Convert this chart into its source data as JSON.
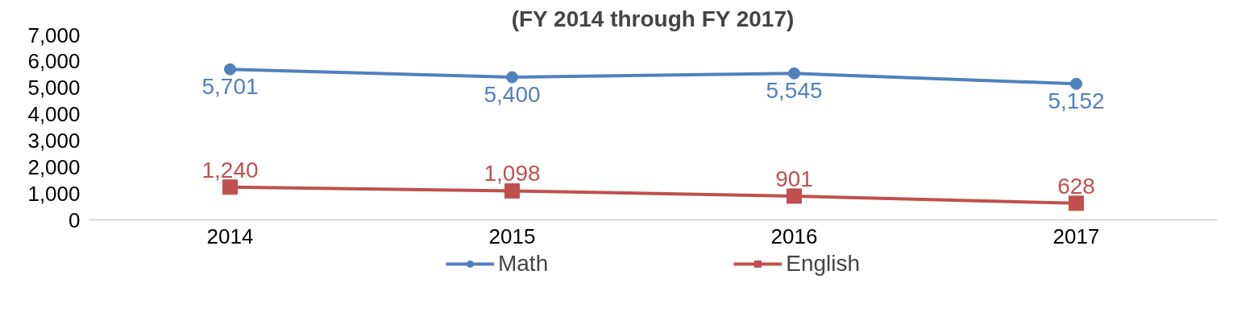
{
  "chart_data": {
    "type": "line",
    "title": "(FY 2014 through FY 2017)",
    "categories": [
      "2014",
      "2015",
      "2016",
      "2017"
    ],
    "series": [
      {
        "name": "Math",
        "color": "#4f81bd",
        "values": [
          5701,
          5400,
          5545,
          5152
        ],
        "value_labels": [
          "5,701",
          "5,400",
          "5,545",
          "5,152"
        ],
        "marker": "circle"
      },
      {
        "name": "English",
        "color": "#c0504d",
        "values": [
          1240,
          1098,
          901,
          628
        ],
        "value_labels": [
          "1,240",
          "1,098",
          "901",
          "628"
        ],
        "marker": "square"
      }
    ],
    "ylim": [
      0,
      7000
    ],
    "yticks": [
      0,
      {
        "value": 1000,
        "label": "1,000"
      },
      {
        "value": 2000,
        "label": "2,000"
      },
      {
        "value": 3000,
        "label": "3,000"
      },
      {
        "value": 4000,
        "label": "4,000"
      },
      {
        "value": 5000,
        "label": "5,000"
      },
      {
        "value": 6000,
        "label": "6,000"
      },
      {
        "value": 7000,
        "label": "7,000"
      }
    ],
    "legend": "bottom"
  }
}
